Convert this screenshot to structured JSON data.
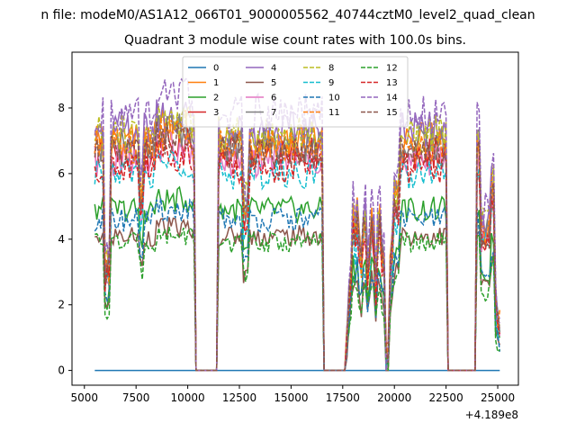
{
  "figure": {
    "suptitle": "n file: modeM0/AS1A12_066T01_9000005562_40744cztM0_level2_quad_clean",
    "offset_label": "+4.189e8"
  },
  "chart_data": {
    "type": "line",
    "title": "Quadrant 3 module wise count rates with 100.0s bins.",
    "xlabel": "",
    "ylabel": "",
    "x_offset": 418900000,
    "xlim": [
      4400,
      26000
    ],
    "ylim": [
      -0.45,
      9.7
    ],
    "xticks": [
      5000,
      7500,
      10000,
      12500,
      15000,
      17500,
      20000,
      22500,
      25000
    ],
    "xtick_labels": [
      "5000",
      "7500",
      "10000",
      "12500",
      "15000",
      "17500",
      "20000",
      "22500",
      "25000"
    ],
    "yticks": [
      0,
      2,
      4,
      6,
      8
    ],
    "ytick_labels": [
      "0",
      "2",
      "4",
      "6",
      "8"
    ],
    "grid": false,
    "legend_position": "top-center",
    "legend_columns": 4,
    "data_gaps": [
      [
        10300,
        11500
      ],
      [
        16500,
        17700
      ],
      [
        22500,
        24000
      ]
    ],
    "series": [
      {
        "name": "0",
        "color": "#1f77b4",
        "dash": "solid",
        "level": 0.0
      },
      {
        "name": "1",
        "color": "#ff7f0e",
        "dash": "solid",
        "level": 7.0
      },
      {
        "name": "2",
        "color": "#2ca02c",
        "dash": "solid",
        "level": 4.9
      },
      {
        "name": "3",
        "color": "#d62728",
        "dash": "solid",
        "level": 6.6
      },
      {
        "name": "4",
        "color": "#9467bd",
        "dash": "solid",
        "level": 7.3
      },
      {
        "name": "5",
        "color": "#8c564b",
        "dash": "solid",
        "level": 4.1
      },
      {
        "name": "6",
        "color": "#e377c2",
        "dash": "solid",
        "level": 6.4
      },
      {
        "name": "7",
        "color": "#7f7f7f",
        "dash": "solid",
        "level": 6.9
      },
      {
        "name": "8",
        "color": "#bcbd22",
        "dash": "dashed",
        "level": 7.2
      },
      {
        "name": "9",
        "color": "#17becf",
        "dash": "dashed",
        "level": 6.0
      },
      {
        "name": "10",
        "color": "#1f77b4",
        "dash": "dashed",
        "level": 4.6
      },
      {
        "name": "11",
        "color": "#ff7f0e",
        "dash": "dashed",
        "level": 6.8
      },
      {
        "name": "12",
        "color": "#2ca02c",
        "dash": "dashed",
        "level": 3.9
      },
      {
        "name": "13",
        "color": "#d62728",
        "dash": "dashed",
        "level": 6.2
      },
      {
        "name": "14",
        "color": "#9467bd",
        "dash": "dashed",
        "level": 7.8
      },
      {
        "name": "15",
        "color": "#8c564b",
        "dash": "dashed",
        "level": 6.7
      }
    ]
  }
}
